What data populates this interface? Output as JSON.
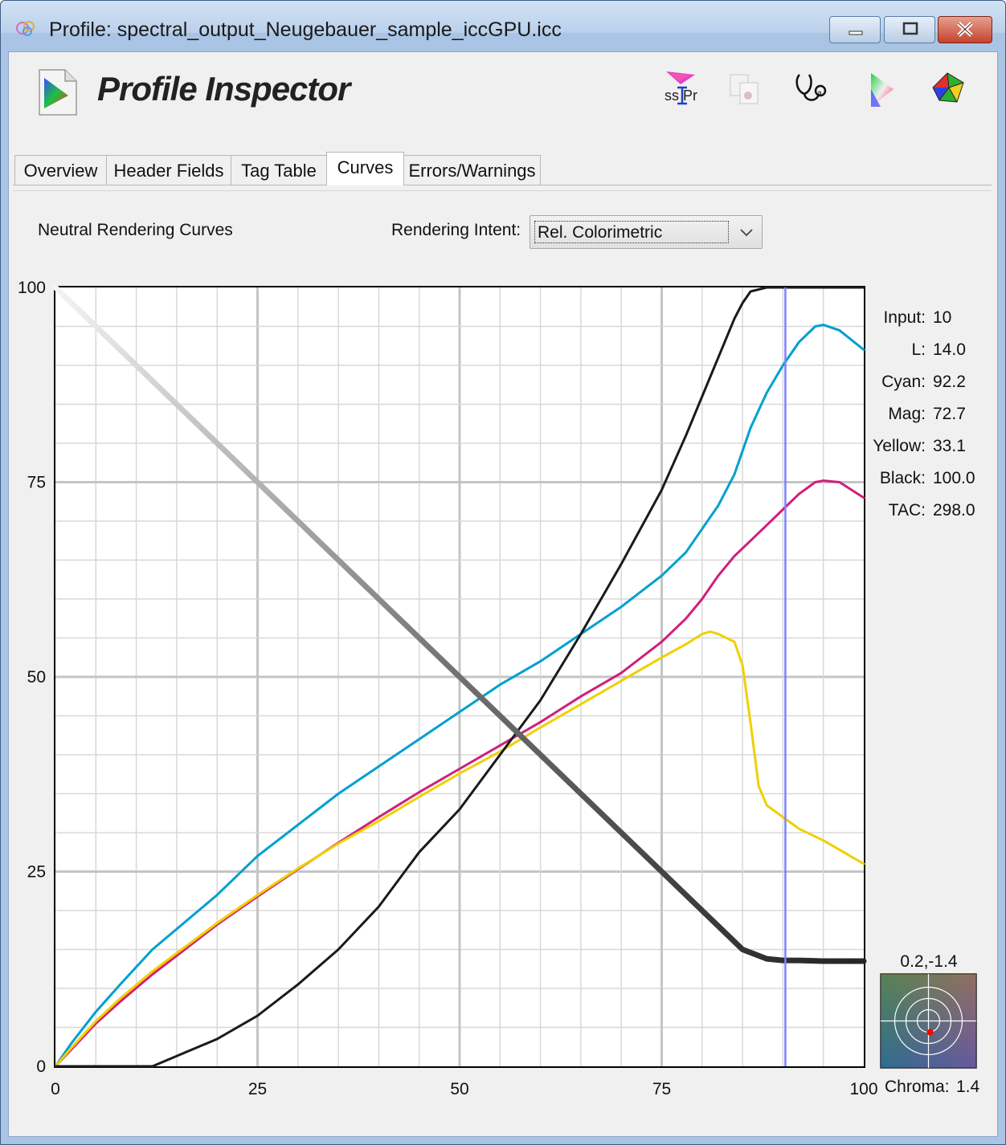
{
  "window": {
    "title": "Profile: spectral_output_Neugebauer_sample_iccGPU.icc"
  },
  "header": {
    "app_name": "Profile Inspector",
    "toolbar_icons": [
      "gamut-profile-icon",
      "copy-profile-icon",
      "stethoscope-icon",
      "gamut-triangle-icon",
      "gamut-3d-icon"
    ]
  },
  "tabs": [
    {
      "label": "Overview",
      "active": false
    },
    {
      "label": "Header Fields",
      "active": false
    },
    {
      "label": "Tag Table",
      "active": false
    },
    {
      "label": "Curves",
      "active": true
    },
    {
      "label": "Errors/Warnings",
      "active": false
    }
  ],
  "curves_panel": {
    "title": "Neutral Rendering Curves",
    "intent_label": "Rendering Intent:",
    "intent_value": "Rel. Colorimetric"
  },
  "readout": {
    "input_label": "Input:",
    "input_value": "10",
    "l_label": "L:",
    "l_value": "14.0",
    "cyan_label": "Cyan:",
    "cyan_value": "92.2",
    "mag_label": "Mag:",
    "mag_value": "72.7",
    "yellow_label": "Yellow:",
    "yellow_value": "33.1",
    "black_label": "Black:",
    "black_value": "100.0",
    "tac_label": "TAC:",
    "tac_value": "298.0"
  },
  "chroma": {
    "ab_label": "0.2,-1.4",
    "chroma_label": "Chroma:",
    "chroma_value": "1.4"
  },
  "chart_data": {
    "type": "line",
    "x_ticks": [
      "0",
      "25",
      "50",
      "75",
      "100"
    ],
    "y_ticks": [
      "0",
      "25",
      "50",
      "75",
      "100"
    ],
    "xlim": [
      0,
      100
    ],
    "ylim": [
      0,
      100
    ],
    "grid": true,
    "cursor_x": 90.3,
    "series": [
      {
        "color": "#00a0d0",
        "x": [
          0,
          2,
          5,
          8,
          12,
          16,
          20,
          25,
          30,
          35,
          40,
          45,
          50,
          55,
          60,
          65,
          70,
          75,
          78,
          80,
          82,
          84,
          86,
          88,
          90,
          92,
          94,
          95,
          97,
          100
        ],
        "y": [
          0,
          3,
          7,
          10.5,
          15,
          18.5,
          22,
          27,
          31,
          35,
          38.5,
          42,
          45.5,
          49,
          52,
          55.5,
          59,
          63,
          66,
          69,
          72,
          76,
          82,
          86.5,
          90,
          93,
          95,
          95.2,
          94.5,
          92
        ]
      },
      {
        "color": "#d0207a",
        "x": [
          0,
          2,
          5,
          8,
          12,
          16,
          20,
          25,
          30,
          35,
          40,
          45,
          50,
          55,
          60,
          65,
          70,
          75,
          78,
          80,
          82,
          84,
          86,
          88,
          90,
          92,
          94,
          95,
          97,
          100
        ],
        "y": [
          0,
          2.2,
          5.5,
          8.3,
          11.8,
          15,
          18.2,
          21.8,
          25.3,
          28.7,
          32,
          35.2,
          38.2,
          41.2,
          44.2,
          47.5,
          50.5,
          54.5,
          57.5,
          60,
          63,
          65.5,
          67.5,
          69.5,
          71.5,
          73.5,
          75,
          75.2,
          75,
          73
        ]
      },
      {
        "color": "#f0d000",
        "x": [
          0,
          2,
          5,
          8,
          12,
          16,
          20,
          25,
          30,
          35,
          40,
          45,
          50,
          55,
          60,
          65,
          70,
          75,
          78,
          80,
          81,
          82,
          84,
          85,
          86,
          87,
          88,
          90,
          92,
          95,
          100
        ],
        "y": [
          0,
          2.4,
          5.8,
          8.7,
          12.2,
          15.3,
          18.4,
          22,
          25.4,
          28.6,
          31.5,
          34.6,
          37.6,
          40.4,
          43.5,
          46.5,
          49.5,
          52.5,
          54.2,
          55.5,
          55.8,
          55.5,
          54.5,
          51.5,
          44,
          36,
          33.5,
          32,
          30.5,
          29,
          26
        ]
      },
      {
        "color": "#1a1a1a",
        "x": [
          0,
          12,
          20,
          25,
          30,
          35,
          40,
          45,
          50,
          55,
          60,
          65,
          70,
          75,
          78,
          80,
          82,
          84,
          85,
          86,
          88,
          90,
          92,
          95,
          100
        ],
        "y": [
          0,
          0,
          3.5,
          6.5,
          10.5,
          15,
          20.5,
          27.5,
          33,
          40,
          47,
          55.5,
          64.5,
          74,
          81,
          86,
          91,
          96,
          98,
          99.5,
          100,
          100,
          100,
          100,
          100
        ]
      },
      {
        "color": "#555555",
        "x": [
          0,
          5,
          10,
          15,
          20,
          25,
          30,
          35,
          40,
          45,
          50,
          55,
          60,
          65,
          70,
          75,
          80,
          85,
          88,
          90,
          92,
          95,
          100
        ],
        "y": [
          100,
          95,
          90,
          85,
          80,
          75,
          70,
          65,
          60,
          55,
          50,
          45,
          40,
          35,
          30,
          25,
          20,
          15,
          13.8,
          13.6,
          13.6,
          13.5,
          13.5
        ]
      }
    ]
  },
  "colors": {
    "cyan": "#00a0d0",
    "magenta": "#d0207a",
    "yellow": "#f0d000",
    "black": "#1a1a1a",
    "cursor": "#8080ff"
  }
}
